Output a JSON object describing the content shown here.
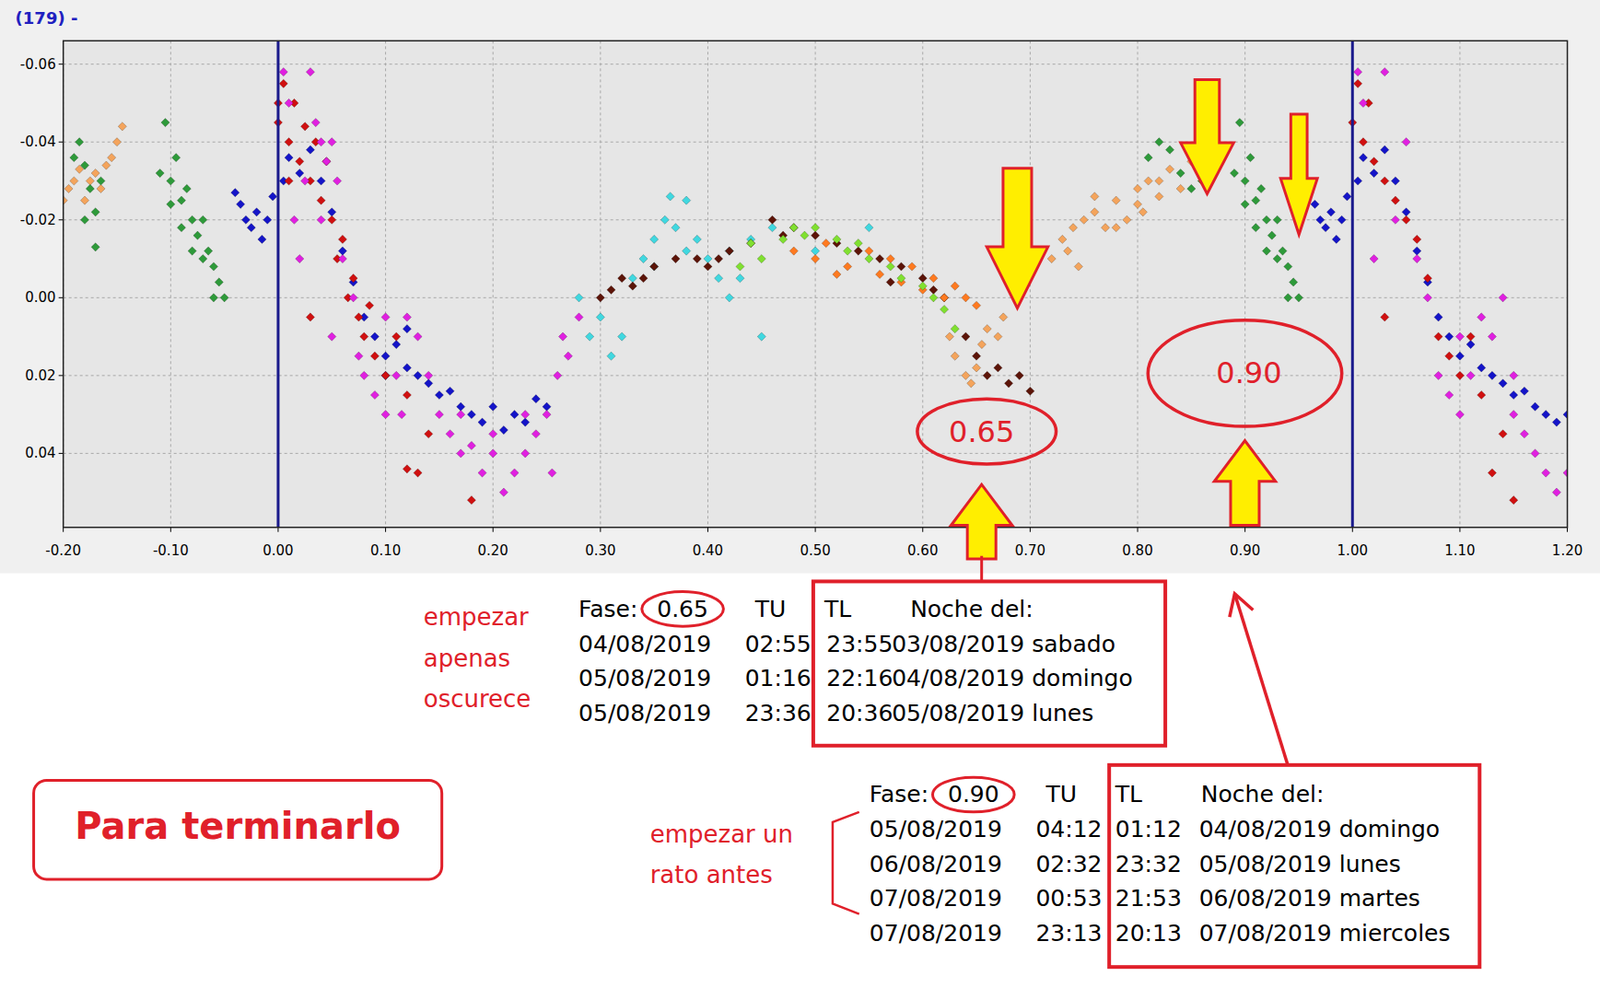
{
  "chart_data": {
    "type": "scatter",
    "title": "(179)  -",
    "marker": "diamond",
    "grid": true,
    "xlim": [
      -0.2,
      1.2
    ],
    "ylim": [
      0.059,
      -0.066
    ],
    "xticks": [
      {
        "value": -0.2,
        "label": "-0.20"
      },
      {
        "value": -0.1,
        "label": "-0.10"
      },
      {
        "value": 0,
        "label": "0.00"
      },
      {
        "value": 0.1,
        "label": "0.10"
      },
      {
        "value": 0.2,
        "label": "0.20"
      },
      {
        "value": 0.3,
        "label": "0.30"
      },
      {
        "value": 0.4,
        "label": "0.40"
      },
      {
        "value": 0.5,
        "label": "0.50"
      },
      {
        "value": 0.6,
        "label": "0.60"
      },
      {
        "value": 0.7,
        "label": "0.70"
      },
      {
        "value": 0.8,
        "label": "0.80"
      },
      {
        "value": 0.9,
        "label": "0.90"
      },
      {
        "value": 1,
        "label": "1.00"
      },
      {
        "value": 1.1,
        "label": "1.10"
      },
      {
        "value": 1.2,
        "label": "1.20"
      }
    ],
    "yticks": [
      {
        "value": -0.06,
        "label": "-0.06"
      },
      {
        "value": -0.04,
        "label": "-0.04"
      },
      {
        "value": -0.02,
        "label": "-0.02"
      },
      {
        "value": 0,
        "label": "0.00"
      },
      {
        "value": 0.02,
        "label": "0.02"
      },
      {
        "value": 0.04,
        "label": "0.04"
      }
    ],
    "vlines": [
      0,
      1
    ],
    "series": [
      {
        "color": "#f4a45c",
        "x": [
          -0.2,
          -0.195,
          -0.19,
          -0.185,
          -0.18,
          -0.175,
          -0.17,
          -0.165,
          -0.16,
          -0.155,
          -0.15,
          -0.145,
          0.625,
          0.63,
          0.64,
          0.645,
          0.65,
          0.655,
          0.66,
          0.67,
          0.675,
          0.72,
          0.73,
          0.735,
          0.74,
          0.745,
          0.75,
          0.76,
          0.76,
          0.77,
          0.78,
          0.78,
          0.79,
          0.8,
          0.8,
          0.805,
          0.81,
          0.82,
          0.82,
          0.83,
          0.84,
          0.85,
          0.86,
          0.865
        ],
        "values": [
          -0.025,
          -0.028,
          -0.03,
          -0.033,
          -0.025,
          -0.03,
          -0.032,
          -0.028,
          -0.034,
          -0.036,
          -0.04,
          -0.044,
          0.01,
          0.015,
          0.02,
          0.022,
          0.018,
          0.012,
          0.008,
          0.01,
          0.005,
          -0.01,
          -0.015,
          -0.012,
          -0.018,
          -0.008,
          -0.02,
          -0.022,
          -0.026,
          -0.018,
          -0.025,
          -0.018,
          -0.02,
          -0.028,
          -0.024,
          -0.022,
          -0.03,
          -0.026,
          -0.03,
          -0.033,
          -0.028,
          -0.035,
          -0.03,
          -0.033
        ]
      },
      {
        "color": "#2e9a3a",
        "x": [
          -0.19,
          -0.185,
          -0.18,
          -0.18,
          -0.175,
          -0.17,
          -0.17,
          -0.165,
          -0.11,
          -0.105,
          -0.1,
          -0.1,
          -0.095,
          -0.09,
          -0.09,
          -0.085,
          -0.08,
          -0.08,
          -0.075,
          -0.07,
          -0.07,
          -0.065,
          -0.06,
          -0.06,
          -0.055,
          -0.05,
          0.81,
          0.82,
          0.83,
          0.84,
          0.85,
          0.86,
          0.89,
          0.895,
          0.9,
          0.9,
          0.905,
          0.91,
          0.91,
          0.915,
          0.92,
          0.92,
          0.925,
          0.93,
          0.93,
          0.935,
          0.94,
          0.94,
          0.945,
          0.95
        ],
        "values": [
          -0.036,
          -0.04,
          -0.034,
          -0.02,
          -0.028,
          -0.022,
          -0.013,
          -0.03,
          -0.032,
          -0.045,
          -0.03,
          -0.024,
          -0.036,
          -0.025,
          -0.018,
          -0.028,
          -0.02,
          -0.012,
          -0.016,
          -0.02,
          -0.01,
          -0.012,
          -0.008,
          0,
          -0.004,
          0,
          -0.036,
          -0.04,
          -0.038,
          -0.032,
          -0.028,
          -0.03,
          -0.032,
          -0.045,
          -0.03,
          -0.024,
          -0.036,
          -0.025,
          -0.018,
          -0.028,
          -0.02,
          -0.012,
          -0.016,
          -0.02,
          -0.01,
          -0.012,
          -0.008,
          0,
          -0.004,
          0
        ]
      },
      {
        "color": "#40d8e0",
        "x": [
          0.28,
          0.29,
          0.3,
          0.31,
          0.32,
          0.33,
          0.34,
          0.35,
          0.35,
          0.36,
          0.365,
          0.37,
          0.38,
          0.38,
          0.39,
          0.4,
          0.41,
          0.42,
          0.42,
          0.43,
          0.44,
          0.45,
          0.46,
          0.5,
          0.55
        ],
        "values": [
          0,
          0.01,
          0.005,
          0.015,
          0.01,
          -0.005,
          -0.01,
          -0.015,
          -0.008,
          -0.02,
          -0.026,
          -0.018,
          -0.025,
          -0.012,
          -0.015,
          -0.01,
          -0.005,
          -0.012,
          0,
          -0.005,
          -0.015,
          0.01,
          -0.018,
          -0.012,
          -0.018
        ]
      },
      {
        "color": "#5c1408",
        "x": [
          0.3,
          0.31,
          0.32,
          0.33,
          0.34,
          0.35,
          0.37,
          0.39,
          0.4,
          0.41,
          0.42,
          0.44,
          0.46,
          0.47,
          0.48,
          0.5,
          0.52,
          0.54,
          0.56,
          0.57,
          0.58,
          0.6,
          0.61,
          0.62,
          0.64,
          0.65,
          0.66,
          0.67,
          0.68,
          0.69,
          0.7
        ],
        "values": [
          0,
          -0.002,
          -0.005,
          -0.003,
          -0.005,
          -0.008,
          -0.01,
          -0.01,
          -0.008,
          -0.01,
          -0.012,
          -0.014,
          -0.02,
          -0.016,
          -0.018,
          -0.016,
          -0.014,
          -0.012,
          -0.01,
          -0.004,
          -0.008,
          -0.005,
          -0.002,
          0,
          0.01,
          0.015,
          0.02,
          0.018,
          0.022,
          0.02,
          0.024
        ]
      },
      {
        "color": "#ff7a20",
        "x": [
          0.48,
          0.5,
          0.51,
          0.52,
          0.53,
          0.55,
          0.56,
          0.57,
          0.58,
          0.59,
          0.6,
          0.61,
          0.62,
          0.63,
          0.64,
          0.65
        ],
        "values": [
          -0.012,
          -0.01,
          -0.014,
          -0.006,
          -0.008,
          -0.012,
          -0.006,
          -0.01,
          -0.004,
          -0.008,
          -0.002,
          -0.005,
          0,
          -0.003,
          0,
          0.002
        ]
      },
      {
        "color": "#80e030",
        "x": [
          0.43,
          0.44,
          0.45,
          0.47,
          0.48,
          0.49,
          0.5,
          0.52,
          0.53,
          0.54,
          0.55,
          0.57,
          0.58,
          0.6,
          0.61,
          0.62,
          0.63
        ],
        "values": [
          -0.008,
          -0.014,
          -0.01,
          -0.015,
          -0.018,
          -0.016,
          -0.018,
          -0.015,
          -0.012,
          -0.014,
          -0.01,
          -0.008,
          -0.005,
          -0.003,
          0,
          0.003,
          0.008
        ]
      },
      {
        "color": "#1414c8",
        "x": [
          -0.04,
          -0.035,
          -0.03,
          -0.025,
          -0.02,
          -0.015,
          -0.01,
          -0.005,
          0.005,
          0.01,
          0.02,
          0.03,
          0.04,
          0.05,
          0.06,
          0.07,
          0.08,
          0.09,
          0.1,
          0.1,
          0.11,
          0.12,
          0.12,
          0.13,
          0.14,
          0.15,
          0.16,
          0.17,
          0.18,
          0.19,
          0.2,
          0.21,
          0.22,
          0.23,
          0.24,
          0.25,
          0.96,
          0.965,
          0.97,
          0.975,
          0.98,
          0.985,
          0.99,
          0.995,
          1.005,
          1.01,
          1.02,
          1.03,
          1.04,
          1.05,
          1.06,
          1.07,
          1.08,
          1.09,
          1.1,
          1.11,
          1.12,
          1.13,
          1.14,
          1.15,
          1.16,
          1.17,
          1.18,
          1.19,
          1.2
        ],
        "values": [
          -0.027,
          -0.024,
          -0.02,
          -0.018,
          -0.022,
          -0.015,
          -0.02,
          -0.026,
          -0.03,
          -0.036,
          -0.032,
          -0.038,
          -0.03,
          -0.022,
          -0.012,
          -0.004,
          0.005,
          0.01,
          0.015,
          0.02,
          0.012,
          0.018,
          0.008,
          0.02,
          0.022,
          0.025,
          0.024,
          0.028,
          0.03,
          0.032,
          0.028,
          0.034,
          0.03,
          0.032,
          0.026,
          0.028,
          -0.027,
          -0.024,
          -0.02,
          -0.018,
          -0.022,
          -0.015,
          -0.02,
          -0.026,
          -0.03,
          -0.036,
          -0.032,
          -0.038,
          -0.03,
          -0.022,
          -0.012,
          -0.004,
          0.005,
          0.01,
          0.015,
          0.012,
          0.018,
          0.02,
          0.022,
          0.025,
          0.024,
          0.028,
          0.03,
          0.032,
          0.03
        ]
      },
      {
        "color": "#d01010",
        "x": [
          0,
          0,
          0.005,
          0.01,
          0.01,
          0.015,
          0.02,
          0.025,
          0.03,
          0.03,
          0.035,
          0.04,
          0.045,
          0.05,
          0.055,
          0.06,
          0.065,
          0.07,
          0.075,
          0.08,
          0.085,
          0.09,
          0.1,
          0.11,
          0.12,
          0.12,
          0.13,
          0.14,
          0.18,
          1,
          1.005,
          1.01,
          1.015,
          1.02,
          1.03,
          1.03,
          1.04,
          1.05,
          1.06,
          1.07,
          1.08,
          1.09,
          1.1,
          1.11,
          1.12,
          1.13,
          1.14,
          1.15
        ],
        "values": [
          -0.045,
          -0.05,
          -0.055,
          -0.04,
          -0.03,
          -0.05,
          -0.035,
          -0.044,
          -0.03,
          0.005,
          -0.04,
          -0.025,
          -0.035,
          -0.02,
          -0.01,
          -0.015,
          0,
          -0.005,
          0.005,
          0.01,
          0.002,
          0.015,
          0.02,
          0.01,
          0.025,
          0.044,
          0.045,
          0.035,
          0.052,
          -0.045,
          -0.055,
          -0.04,
          -0.05,
          -0.035,
          -0.03,
          0.005,
          -0.025,
          -0.02,
          -0.015,
          -0.005,
          0.01,
          0.015,
          0.02,
          0.01,
          0.025,
          0.045,
          0.035,
          0.052
        ]
      },
      {
        "color": "#e020e0",
        "x": [
          0.005,
          0.01,
          0.015,
          0.02,
          0.025,
          0.03,
          0.035,
          0.04,
          0.04,
          0.045,
          0.05,
          0.05,
          0.055,
          0.06,
          0.07,
          0.075,
          0.08,
          0.09,
          0.1,
          0.1,
          0.11,
          0.115,
          0.12,
          0.13,
          0.14,
          0.15,
          0.16,
          0.17,
          0.17,
          0.18,
          0.19,
          0.2,
          0.2,
          0.21,
          0.22,
          0.23,
          0.23,
          0.24,
          0.25,
          0.255,
          0.26,
          0.265,
          0.27,
          0.28,
          1.005,
          1.01,
          1.02,
          1.03,
          1.04,
          1.05,
          1.06,
          1.07,
          1.08,
          1.09,
          1.1,
          1.1,
          1.11,
          1.12,
          1.13,
          1.14,
          1.15,
          1.15,
          1.16,
          1.17,
          1.18,
          1.19,
          1.2
        ],
        "values": [
          -0.058,
          -0.05,
          -0.02,
          -0.01,
          -0.03,
          -0.058,
          -0.045,
          -0.02,
          -0.04,
          -0.035,
          -0.04,
          0.01,
          -0.03,
          -0.01,
          0,
          0.015,
          0.02,
          0.025,
          0.03,
          0.005,
          0.02,
          0.03,
          0.005,
          0.01,
          0.02,
          0.03,
          0.035,
          0.04,
          0.03,
          0.038,
          0.045,
          0.04,
          0.035,
          0.05,
          0.045,
          0.04,
          0.03,
          0.035,
          0.03,
          0.045,
          0.02,
          0.01,
          0.015,
          0.005,
          -0.058,
          -0.05,
          -0.01,
          -0.058,
          -0.02,
          -0.04,
          -0.01,
          0,
          0.02,
          0.025,
          0.03,
          0.01,
          0.02,
          0.005,
          0.01,
          0,
          0.03,
          0.02,
          0.035,
          0.04,
          0.045,
          0.05,
          0.045
        ]
      }
    ]
  },
  "annotations": {
    "phase_labels": [
      "0.65",
      "0.90"
    ],
    "box_label": "Para terminarlo",
    "tables": [
      {
        "note": [
          "empezar",
          "apenas",
          "oscurece"
        ],
        "phase_label": "Fase:",
        "phase": "0.65",
        "headers": [
          "TU",
          "TL",
          "Noche del:"
        ],
        "rows": [
          [
            "04/08/2019",
            "02:55",
            "23:55",
            "03/08/2019 sabado"
          ],
          [
            "05/08/2019",
            "01:16",
            "22:16",
            "04/08/2019 domingo"
          ],
          [
            "05/08/2019",
            "23:36",
            "20:36",
            "05/08/2019 lunes"
          ]
        ]
      },
      {
        "note": [
          "empezar un",
          "rato antes"
        ],
        "phase_label": "Fase:",
        "phase": "0.90",
        "headers": [
          "TU",
          "TL",
          "Noche del:"
        ],
        "rows": [
          [
            "05/08/2019",
            "04:12",
            "01:12",
            "04/08/2019 domingo"
          ],
          [
            "06/08/2019",
            "02:32",
            "23:32",
            "05/08/2019 lunes"
          ],
          [
            "07/08/2019",
            "00:53",
            "21:53",
            "06/08/2019 martes"
          ],
          [
            "07/08/2019",
            "23:13",
            "20:13",
            "07/08/2019 miercoles"
          ]
        ]
      }
    ]
  }
}
